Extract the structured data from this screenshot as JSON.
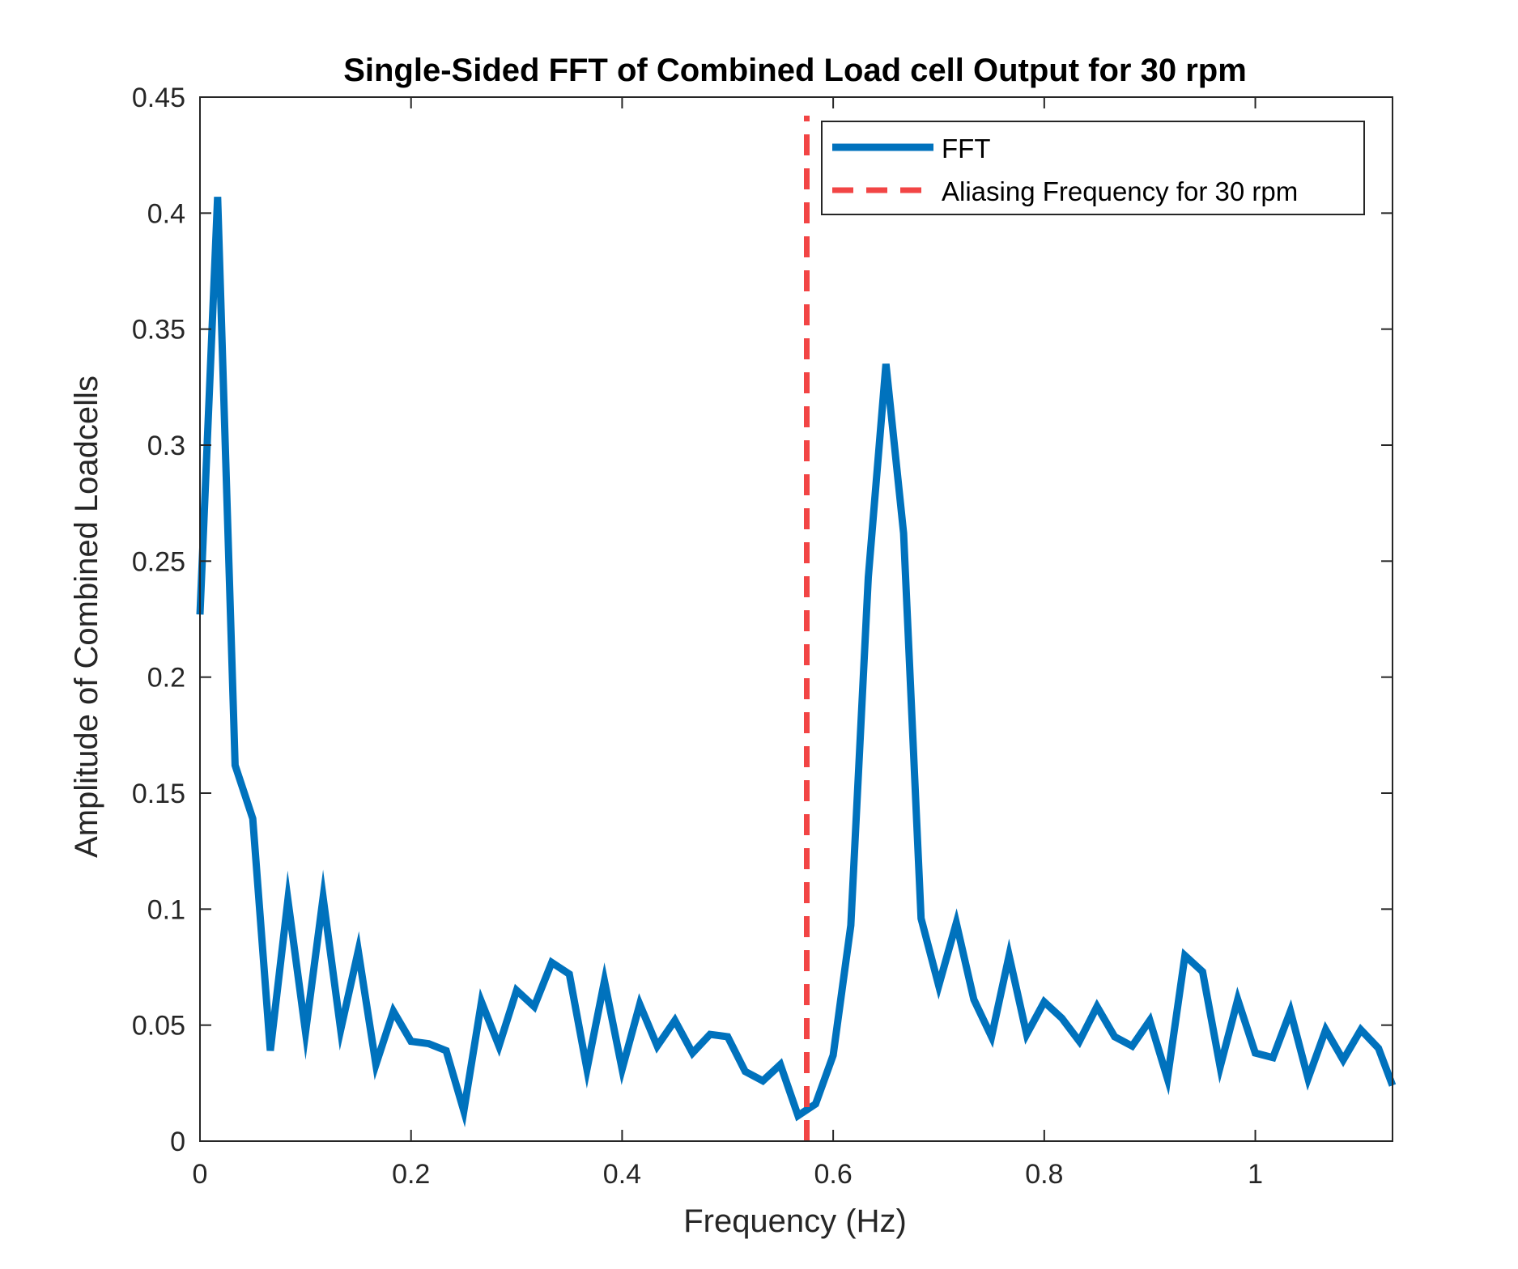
{
  "chart_data": {
    "type": "line",
    "title": "Single-Sided FFT of Combined Load cell Output for 30 rpm",
    "xlabel": "Frequency (Hz)",
    "ylabel": "Amplitude of Combined Loadcells",
    "xlim": [
      0,
      1.13
    ],
    "ylim": [
      0,
      0.45
    ],
    "x_ticks": [
      0,
      0.2,
      0.4,
      0.6,
      0.8,
      1
    ],
    "x_tick_labels": [
      "0",
      "0.2",
      "0.4",
      "0.6",
      "0.8",
      "1"
    ],
    "y_ticks": [
      0,
      0.05,
      0.1,
      0.15,
      0.2,
      0.25,
      0.3,
      0.35,
      0.4,
      0.45
    ],
    "y_tick_labels": [
      "0",
      "0.05",
      "0.1",
      "0.15",
      "0.2",
      "0.25",
      "0.3",
      "0.35",
      "0.4",
      "0.45"
    ],
    "grid": false,
    "legend_position": "top-right",
    "series": [
      {
        "name": "FFT",
        "style": "solid",
        "color": "#0072BD",
        "x": [
          0,
          0.0167,
          0.0333,
          0.05,
          0.0667,
          0.0833,
          0.1,
          0.1167,
          0.1333,
          0.15,
          0.1667,
          0.1833,
          0.2,
          0.2167,
          0.2333,
          0.25,
          0.2667,
          0.2833,
          0.3,
          0.3167,
          0.3333,
          0.35,
          0.3667,
          0.3833,
          0.4,
          0.4167,
          0.4333,
          0.45,
          0.4667,
          0.4833,
          0.5,
          0.5167,
          0.5333,
          0.55,
          0.5667,
          0.5833,
          0.6,
          0.6167,
          0.6333,
          0.65,
          0.6667,
          0.6833,
          0.7,
          0.7167,
          0.7333,
          0.75,
          0.7667,
          0.7833,
          0.8,
          0.8167,
          0.8333,
          0.85,
          0.8667,
          0.8833,
          0.9,
          0.9167,
          0.9333,
          0.95,
          0.9667,
          0.9833,
          1.0,
          1.0167,
          1.0333,
          1.05,
          1.0667,
          1.0833,
          1.1,
          1.1167,
          1.13
        ],
        "y": [
          0.227,
          0.407,
          0.162,
          0.139,
          0.039,
          0.104,
          0.047,
          0.105,
          0.048,
          0.082,
          0.033,
          0.056,
          0.043,
          0.042,
          0.039,
          0.013,
          0.06,
          0.041,
          0.065,
          0.058,
          0.077,
          0.072,
          0.031,
          0.069,
          0.031,
          0.059,
          0.041,
          0.052,
          0.038,
          0.046,
          0.045,
          0.03,
          0.026,
          0.033,
          0.011,
          0.016,
          0.037,
          0.093,
          0.243,
          0.335,
          0.262,
          0.096,
          0.067,
          0.094,
          0.061,
          0.045,
          0.08,
          0.046,
          0.06,
          0.053,
          0.043,
          0.058,
          0.045,
          0.041,
          0.052,
          0.027,
          0.08,
          0.073,
          0.032,
          0.061,
          0.038,
          0.036,
          0.056,
          0.027,
          0.048,
          0.035,
          0.048,
          0.04,
          0.024
        ]
      },
      {
        "name": "Aliasing Frequency for 30 rpm",
        "style": "dashed",
        "color": "#F24545",
        "x": [
          0.575,
          0.575
        ],
        "y": [
          0,
          0.442
        ]
      }
    ]
  }
}
